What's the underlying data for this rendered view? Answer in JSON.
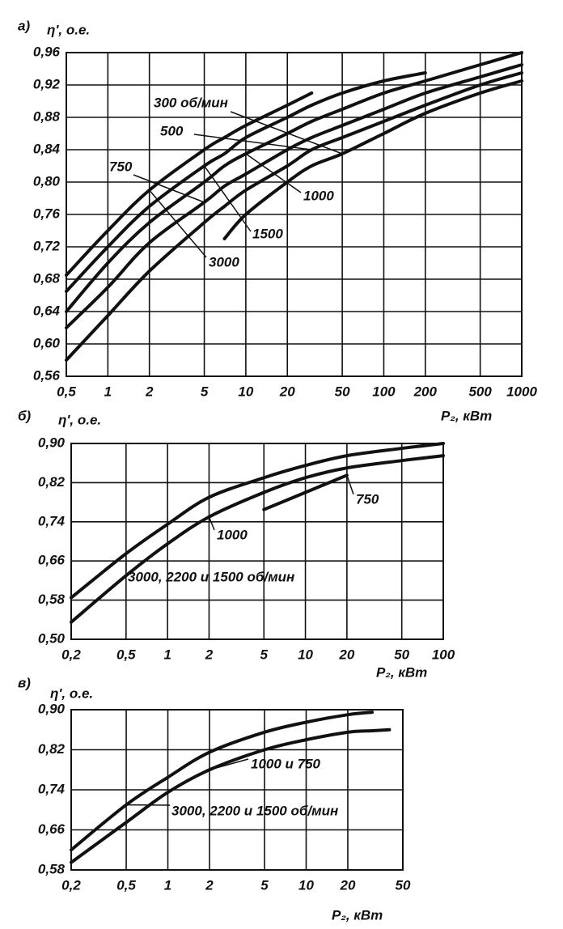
{
  "chart_data": [
    {
      "type": "line",
      "panel": "а)",
      "ylabel": "η', о.е.",
      "xlabel": "P₂, кВт",
      "xscale": "log",
      "grid": true,
      "color": "#111111",
      "xlim": [
        0.5,
        1000
      ],
      "ylim": [
        0.56,
        0.96
      ],
      "xticks": [
        {
          "value": 0.5,
          "label": "0,5"
        },
        1,
        2,
        5,
        10,
        20,
        50,
        100,
        200,
        500,
        1000
      ],
      "yticks": [
        {
          "value": 0.96,
          "label": "0,96"
        },
        {
          "value": 0.92,
          "label": "0,92"
        },
        {
          "value": 0.88,
          "label": "0,88"
        },
        {
          "value": 0.84,
          "label": "0,84"
        },
        {
          "value": 0.8,
          "label": "0,80"
        },
        {
          "value": 0.76,
          "label": "0,76"
        },
        {
          "value": 0.72,
          "label": "0,72"
        },
        {
          "value": 0.68,
          "label": "0,68"
        },
        {
          "value": 0.64,
          "label": "0,64"
        },
        {
          "value": 0.6,
          "label": "0,60"
        },
        {
          "value": 0.56,
          "label": "0,56"
        }
      ],
      "x": [
        0.5,
        1,
        2,
        5,
        7,
        10,
        20,
        30,
        50,
        100,
        200,
        500,
        1000
      ],
      "series": [
        {
          "name": "3000",
          "values": [
            0.685,
            0.74,
            0.79,
            0.84,
            0.855,
            0.87,
            0.895,
            0.91,
            null,
            null,
            null,
            null,
            null
          ]
        },
        {
          "name": "1500",
          "values": [
            0.665,
            0.72,
            0.77,
            0.82,
            0.835,
            0.855,
            0.88,
            0.895,
            0.91,
            0.925,
            0.935,
            null,
            null
          ]
        },
        {
          "name": "1000",
          "values": [
            0.64,
            0.7,
            0.75,
            0.8,
            0.82,
            0.835,
            0.86,
            0.875,
            0.89,
            0.91,
            0.925,
            0.945,
            0.96
          ]
        },
        {
          "name": "750",
          "values": [
            0.62,
            0.67,
            0.725,
            0.775,
            0.795,
            0.81,
            0.84,
            0.855,
            0.87,
            0.89,
            0.91,
            0.93,
            0.945
          ]
        },
        {
          "name": "500",
          "values": [
            0.58,
            0.635,
            0.69,
            0.75,
            0.77,
            0.79,
            0.82,
            0.84,
            0.855,
            0.875,
            0.895,
            0.92,
            0.935
          ]
        },
        {
          "name": "300 об/мин",
          "values": [
            null,
            null,
            null,
            null,
            0.73,
            0.76,
            0.8,
            0.82,
            0.835,
            0.86,
            0.885,
            0.91,
            0.925
          ]
        }
      ]
    },
    {
      "type": "line",
      "panel": "б)",
      "ylabel": "η', о.е.",
      "xlabel": "P₂, кВт",
      "xscale": "log",
      "grid": true,
      "color": "#111111",
      "xlim": [
        0.2,
        100
      ],
      "ylim": [
        0.5,
        0.9
      ],
      "xticks": [
        {
          "value": 0.2,
          "label": "0,2"
        },
        {
          "value": 0.5,
          "label": "0,5"
        },
        1,
        2,
        5,
        10,
        20,
        50,
        100
      ],
      "yticks": [
        {
          "value": 0.9,
          "label": "0,90"
        },
        {
          "value": 0.82,
          "label": "0,82"
        },
        {
          "value": 0.74,
          "label": "0,74"
        },
        {
          "value": 0.66,
          "label": "0,66"
        },
        {
          "value": 0.58,
          "label": "0,58"
        },
        {
          "value": 0.5,
          "label": "0,50"
        }
      ],
      "x": [
        0.2,
        0.5,
        1,
        2,
        5,
        10,
        20,
        50,
        100
      ],
      "series": [
        {
          "name": "3000, 2200 и 1500 об/мин",
          "values": [
            0.585,
            0.675,
            0.735,
            0.79,
            0.83,
            0.855,
            0.875,
            0.89,
            0.9
          ]
        },
        {
          "name": "1000",
          "values": [
            0.535,
            0.63,
            0.695,
            0.75,
            0.8,
            0.83,
            0.85,
            0.865,
            0.875
          ]
        },
        {
          "name": "750",
          "values": [
            null,
            null,
            null,
            null,
            0.765,
            0.8,
            0.835,
            null,
            null
          ]
        }
      ]
    },
    {
      "type": "line",
      "panel": "в)",
      "ylabel": "η', о.е.",
      "xlabel": "P₂, кВт",
      "xscale": "log",
      "grid": true,
      "color": "#111111",
      "xlim": [
        0.2,
        50
      ],
      "ylim": [
        0.58,
        0.9
      ],
      "xticks": [
        {
          "value": 0.2,
          "label": "0,2"
        },
        {
          "value": 0.5,
          "label": "0,5"
        },
        1,
        2,
        5,
        10,
        20,
        50
      ],
      "yticks": [
        {
          "value": 0.9,
          "label": "0,90"
        },
        {
          "value": 0.82,
          "label": "0,82"
        },
        {
          "value": 0.74,
          "label": "0,74"
        },
        {
          "value": 0.66,
          "label": "0,66"
        },
        {
          "value": 0.58,
          "label": "0,58"
        }
      ],
      "x": [
        0.2,
        0.5,
        1,
        2,
        5,
        10,
        20,
        30,
        40
      ],
      "series": [
        {
          "name": "3000, 2200 и 1500 об/мин",
          "values": [
            0.62,
            0.71,
            0.765,
            0.815,
            0.855,
            0.875,
            0.89,
            0.895,
            null
          ]
        },
        {
          "name": "1000 и 750",
          "values": [
            0.595,
            0.675,
            0.735,
            0.78,
            0.82,
            0.84,
            0.855,
            0.858,
            0.86
          ]
        }
      ]
    }
  ]
}
